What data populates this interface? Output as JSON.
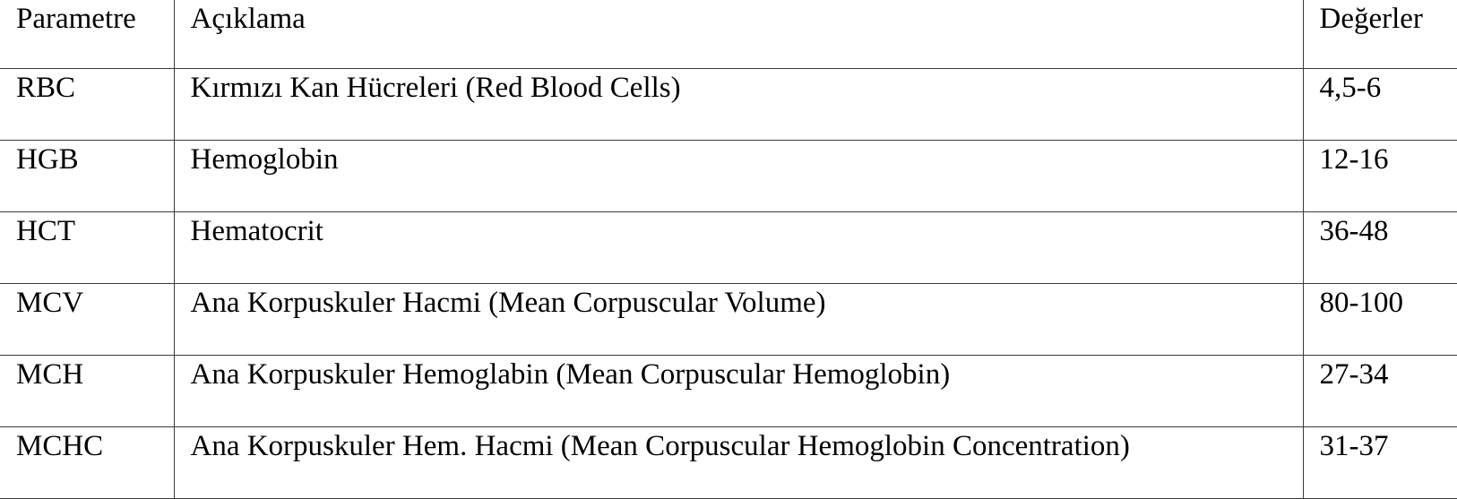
{
  "table": {
    "headers": {
      "param": "Parametre",
      "desc": "Açıklama",
      "val": "Değerler"
    },
    "rows": [
      {
        "param": "RBC",
        "desc": "Kırmızı Kan Hücreleri (Red Blood Cells)",
        "val": "4,5-6"
      },
      {
        "param": "HGB",
        "desc": "Hemoglobin",
        "val": "12-16"
      },
      {
        "param": "HCT",
        "desc": "Hematocrit",
        "val": "36-48"
      },
      {
        "param": "MCV",
        "desc": "Ana Korpuskuler Hacmi (Mean Corpuscular Volume)",
        "val": "80-100"
      },
      {
        "param": "MCH",
        "desc": "Ana Korpuskuler Hemoglabin (Mean Corpuscular Hemoglobin)",
        "val": "27-34"
      },
      {
        "param": "MCHC",
        "desc": "Ana Korpuskuler Hem.  Hacmi (Mean Corpuscular Hemoglobin Concentration)",
        "val": "31-37"
      }
    ]
  }
}
